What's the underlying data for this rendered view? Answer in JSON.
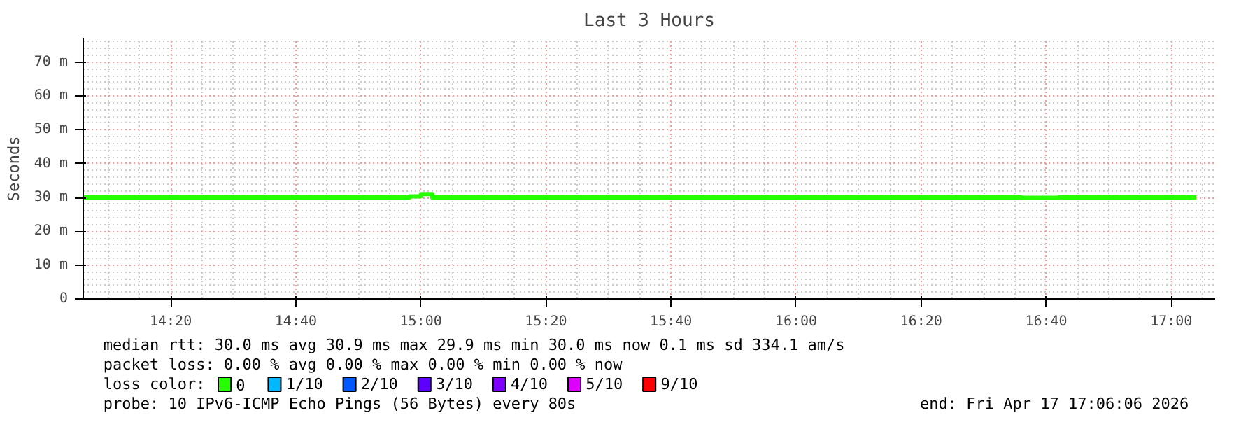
{
  "chart_data": {
    "type": "step",
    "title": "Last 3 Hours",
    "ylabel": "Seconds",
    "legend_title": "loss color:",
    "x": [
      14.1,
      14.5,
      14.9,
      14.97,
      15.0,
      15.03,
      15.5,
      16.0,
      16.5,
      16.6,
      16.7,
      17.0,
      17.067
    ],
    "series": [
      {
        "name": "0",
        "color": "#26ff00",
        "values": [
          30,
          30,
          30,
          30.3,
          31,
          30,
          30,
          30,
          30,
          29.9,
          30,
          30,
          30
        ]
      },
      {
        "name": "1/10",
        "color": "#00b8ff",
        "values": [
          null,
          null,
          null,
          null,
          null,
          null,
          null,
          null,
          null,
          null,
          null,
          null,
          null
        ]
      },
      {
        "name": "2/10",
        "color": "#0059ff",
        "values": [
          null,
          null,
          null,
          null,
          null,
          null,
          null,
          null,
          null,
          null,
          null,
          null,
          null
        ]
      },
      {
        "name": "3/10",
        "color": "#5e00ff",
        "values": [
          null,
          null,
          null,
          null,
          null,
          null,
          null,
          null,
          null,
          null,
          null,
          null,
          null
        ]
      },
      {
        "name": "4/10",
        "color": "#7e00ff",
        "values": [
          null,
          null,
          null,
          null,
          null,
          null,
          null,
          null,
          null,
          null,
          null,
          null,
          null
        ]
      },
      {
        "name": "5/10",
        "color": "#dd00ff",
        "values": [
          null,
          null,
          null,
          null,
          null,
          null,
          null,
          null,
          null,
          null,
          null,
          null,
          null
        ]
      },
      {
        "name": "9/10",
        "color": "#ff0000",
        "values": [
          null,
          null,
          null,
          null,
          null,
          null,
          null,
          null,
          null,
          null,
          null,
          null,
          null
        ]
      }
    ],
    "xlim": [
      14.1,
      17.117
    ],
    "ylim": [
      0,
      77
    ],
    "xticks": [
      {
        "value": 14.3333,
        "label": "14:20"
      },
      {
        "value": 14.6667,
        "label": "14:40"
      },
      {
        "value": 15,
        "label": "15:00"
      },
      {
        "value": 15.3333,
        "label": "15:20"
      },
      {
        "value": 15.6667,
        "label": "15:40"
      },
      {
        "value": 16,
        "label": "16:00"
      },
      {
        "value": 16.3333,
        "label": "16:20"
      },
      {
        "value": 16.6667,
        "label": "16:40"
      },
      {
        "value": 17,
        "label": "17:00"
      }
    ],
    "yticks": [
      0,
      {
        "value": 10,
        "label": "10 m"
      },
      {
        "value": 20,
        "label": "20 m"
      },
      {
        "value": 30,
        "label": "30 m"
      },
      {
        "value": 40,
        "label": "40 m"
      },
      {
        "value": 50,
        "label": "50 m"
      },
      {
        "value": 60,
        "label": "60 m"
      },
      {
        "value": 70,
        "label": "70 m"
      }
    ],
    "grid": true,
    "legend": "bottom left",
    "annotations": [
      "median rtt:  30.0 ms avg   30.9 ms max   29.9 ms min   30.0 ms now   0.1 ms sd   334.1   am/s",
      "packet loss: 0.00 % avg  0.00 % max  0.00 % min  0.00 % now",
      "probe:       10 IPv6-ICMP Echo Pings (56 Bytes) every 80s",
      "end: Fri Apr 17 17:06:06 2026"
    ]
  }
}
